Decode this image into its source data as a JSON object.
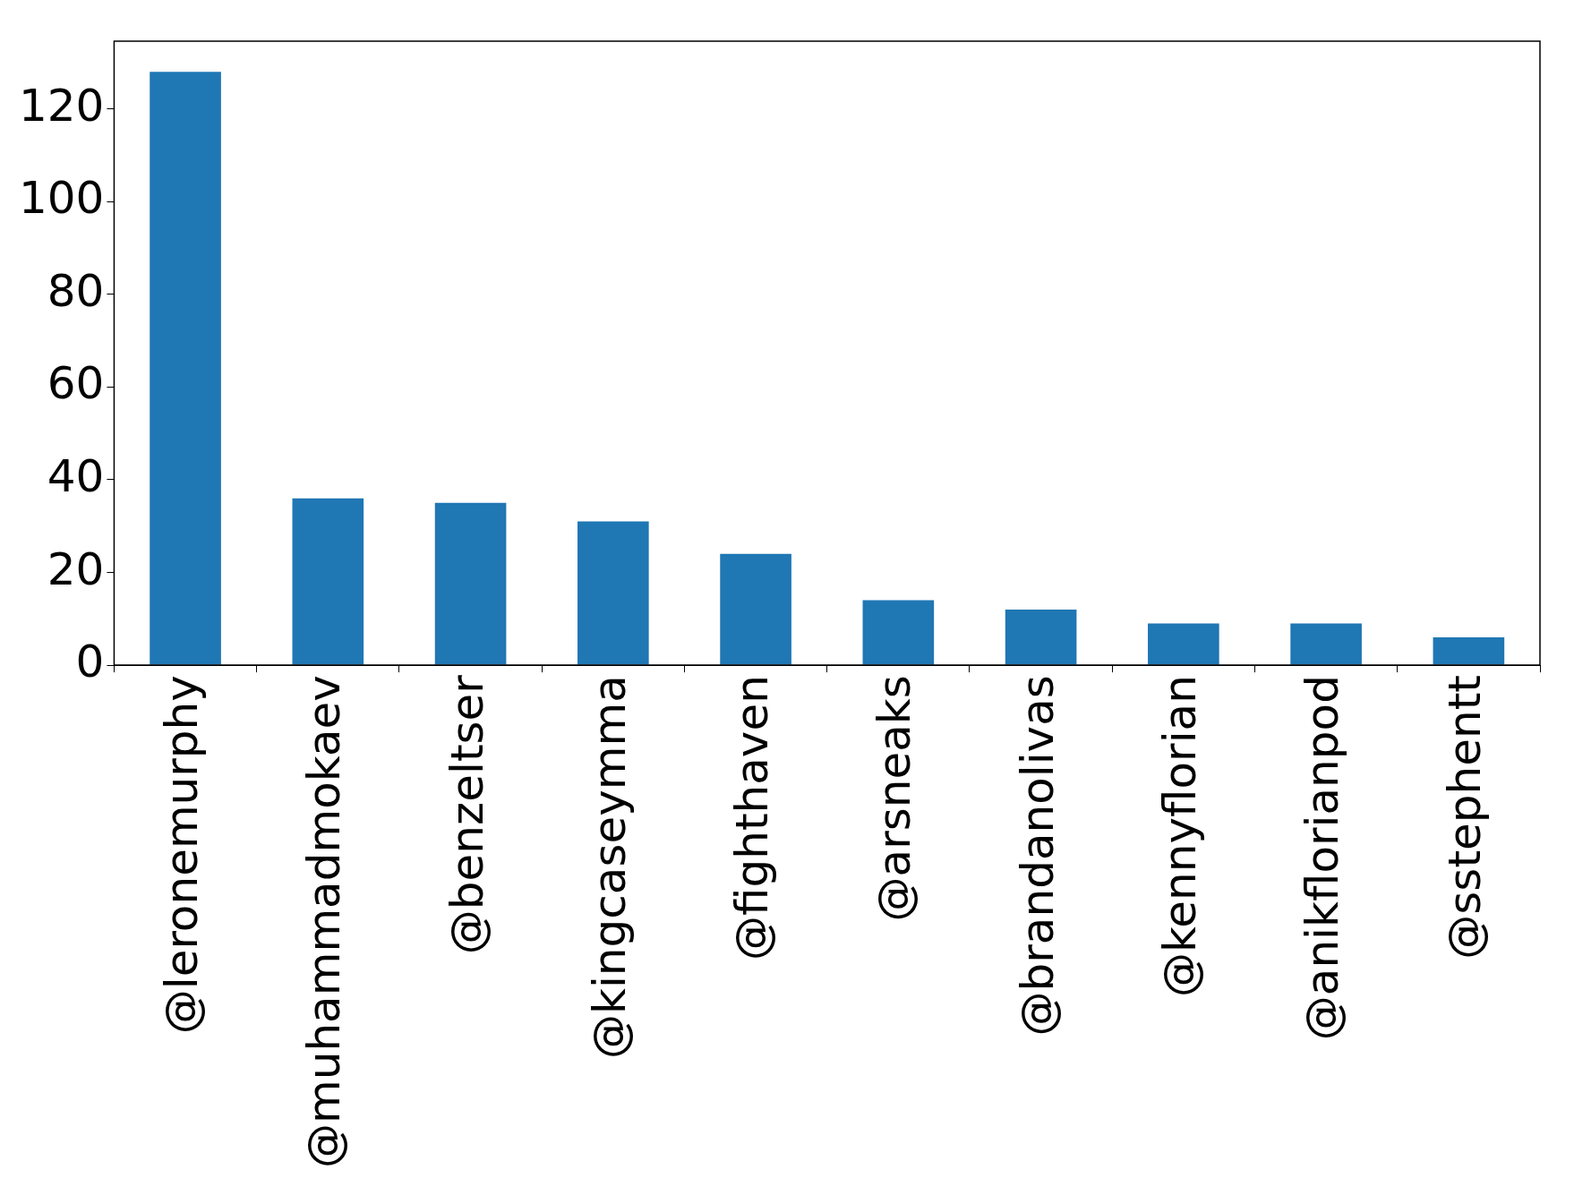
{
  "chart_data": {
    "type": "bar",
    "categories": [
      "@leronemurphy",
      "@muhammadmokaev",
      "@benzeltser",
      "@kingcaseymma",
      "@fighthaven",
      "@arsneaks",
      "@brandanolivas",
      "@kennyflorian",
      "@anikflorianpod",
      "@sstephentt"
    ],
    "values": [
      128,
      36,
      35,
      31,
      24,
      14,
      12,
      9,
      9,
      6
    ],
    "color": "#1f77b4",
    "ylim": [
      0,
      134.6
    ],
    "yticks": [
      0,
      20,
      40,
      60,
      80,
      100,
      120
    ],
    "grid": false,
    "legend": false
  }
}
